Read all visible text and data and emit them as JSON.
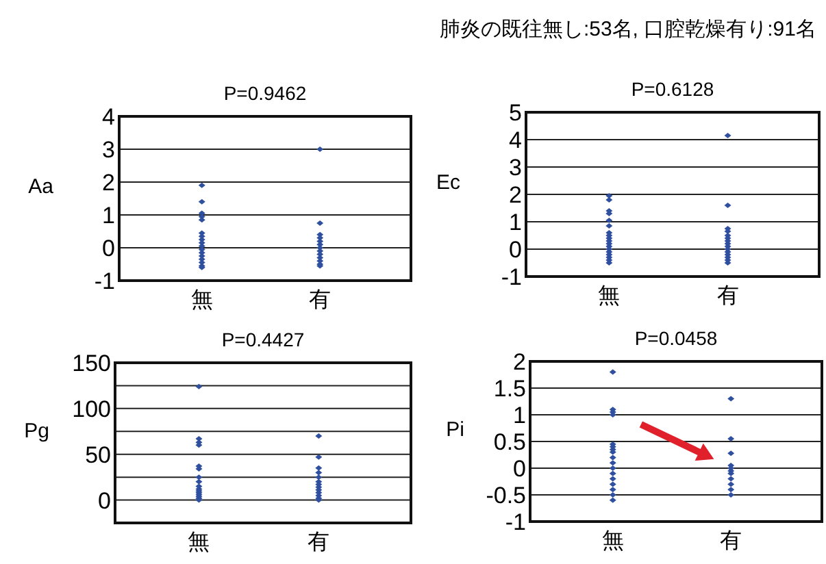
{
  "chart_data": [
    {
      "type": "scatter",
      "title": "P=0.9462",
      "ylabel": "Aa",
      "annotations": [
        "肺炎の既往無し:53名, 口腔乾燥有り:91名"
      ],
      "categories": [
        "無",
        "有"
      ],
      "marker": "diamond",
      "grid": "y",
      "ylim": [
        -1,
        4
      ],
      "yticks": [
        -1,
        0,
        1,
        2,
        3,
        4
      ],
      "series": [
        {
          "color": "#2f4f9f",
          "x": [
            "無",
            "無",
            "無",
            "無",
            "無",
            "無",
            "無",
            "無",
            "無",
            "無",
            "無",
            "無",
            "無",
            "無",
            "無",
            "無",
            "無",
            "有",
            "有",
            "有",
            "有",
            "有",
            "有",
            "有",
            "有",
            "有",
            "有",
            "有",
            "有",
            "有"
          ],
          "values": [
            1.9,
            1.4,
            1.05,
            0.95,
            0.85,
            0.45,
            0.35,
            0.25,
            0.15,
            0.05,
            -0.05,
            -0.15,
            -0.25,
            -0.35,
            -0.45,
            -0.55,
            -0.6,
            3,
            0.75,
            0.4,
            0.3,
            0.2,
            0.1,
            0,
            -0.1,
            -0.2,
            -0.3,
            -0.4,
            -0.5,
            -0.55
          ]
        }
      ]
    },
    {
      "type": "scatter",
      "title": "P=0.6128",
      "ylabel": "Ec",
      "categories": [
        "無",
        "有"
      ],
      "marker": "diamond",
      "grid": "y",
      "ylim": [
        -1,
        5
      ],
      "yticks": [
        -1,
        0,
        1,
        2,
        3,
        4,
        5
      ],
      "series": [
        {
          "color": "#2f4f9f",
          "x": [
            "無",
            "無",
            "無",
            "無",
            "無",
            "無",
            "無",
            "無",
            "無",
            "無",
            "無",
            "無",
            "無",
            "無",
            "無",
            "無",
            "無",
            "無",
            "有",
            "有",
            "有",
            "有",
            "有",
            "有",
            "有",
            "有",
            "有",
            "有",
            "有",
            "有",
            "有",
            "有",
            "有"
          ],
          "values": [
            1.95,
            1.8,
            1.4,
            1.3,
            1.05,
            0.85,
            0.6,
            0.5,
            0.4,
            0.3,
            0.2,
            0.1,
            0,
            -0.1,
            -0.2,
            -0.3,
            -0.4,
            -0.5,
            4.15,
            1.6,
            0.75,
            0.65,
            0.5,
            0.4,
            0.3,
            0.2,
            0.1,
            0,
            -0.1,
            -0.2,
            -0.3,
            -0.4,
            -0.5
          ]
        }
      ]
    },
    {
      "type": "scatter",
      "title": "P=0.4427",
      "ylabel": "Pg",
      "categories": [
        "無",
        "有"
      ],
      "marker": "diamond",
      "grid": "y",
      "ylim": [
        -25,
        150
      ],
      "yticks": [
        {
          "value": -25,
          "label": null
        },
        0,
        {
          "value": 25,
          "label": null
        },
        50,
        {
          "value": 75,
          "label": null
        },
        100,
        {
          "value": 125,
          "label": null
        },
        150
      ],
      "series": [
        {
          "color": "#2f4f9f",
          "x": [
            "無",
            "無",
            "無",
            "無",
            "無",
            "無",
            "無",
            "無",
            "無",
            "無",
            "無",
            "無",
            "無",
            "無",
            "無",
            "無",
            "有",
            "有",
            "有",
            "有",
            "有",
            "有",
            "有",
            "有",
            "有",
            "有",
            "有",
            "有",
            "有"
          ],
          "values": [
            124,
            67,
            63,
            60,
            37,
            34,
            25,
            20,
            15,
            12,
            10,
            8,
            6,
            4,
            2,
            0,
            70,
            47,
            35,
            30,
            25,
            20,
            17,
            14,
            11,
            8,
            5,
            2,
            0
          ]
        }
      ]
    },
    {
      "type": "scatter",
      "title": "P=0.0458",
      "ylabel": "Pi",
      "categories": [
        "無",
        "有"
      ],
      "marker": "diamond",
      "grid": "y",
      "ylim": [
        -1,
        2
      ],
      "yticks": [
        -1,
        -0.5,
        0,
        0.5,
        1,
        1.5,
        2
      ],
      "series": [
        {
          "color": "#2f4f9f",
          "x": [
            "無",
            "無",
            "無",
            "無",
            "無",
            "無",
            "無",
            "無",
            "無",
            "無",
            "無",
            "無",
            "無",
            "無",
            "無",
            "無",
            "無",
            "有",
            "有",
            "有",
            "有",
            "有",
            "有",
            "有",
            "有",
            "有",
            "有",
            "有"
          ],
          "values": [
            1.8,
            1.1,
            1.05,
            1,
            0.45,
            0.4,
            0.35,
            0.3,
            0.2,
            0.1,
            0,
            -0.1,
            -0.2,
            -0.3,
            -0.4,
            -0.5,
            -0.6,
            1.3,
            0.55,
            0.28,
            0.05,
            0,
            -0.05,
            -0.1,
            -0.2,
            -0.3,
            -0.4,
            -0.5
          ]
        }
      ]
    }
  ]
}
